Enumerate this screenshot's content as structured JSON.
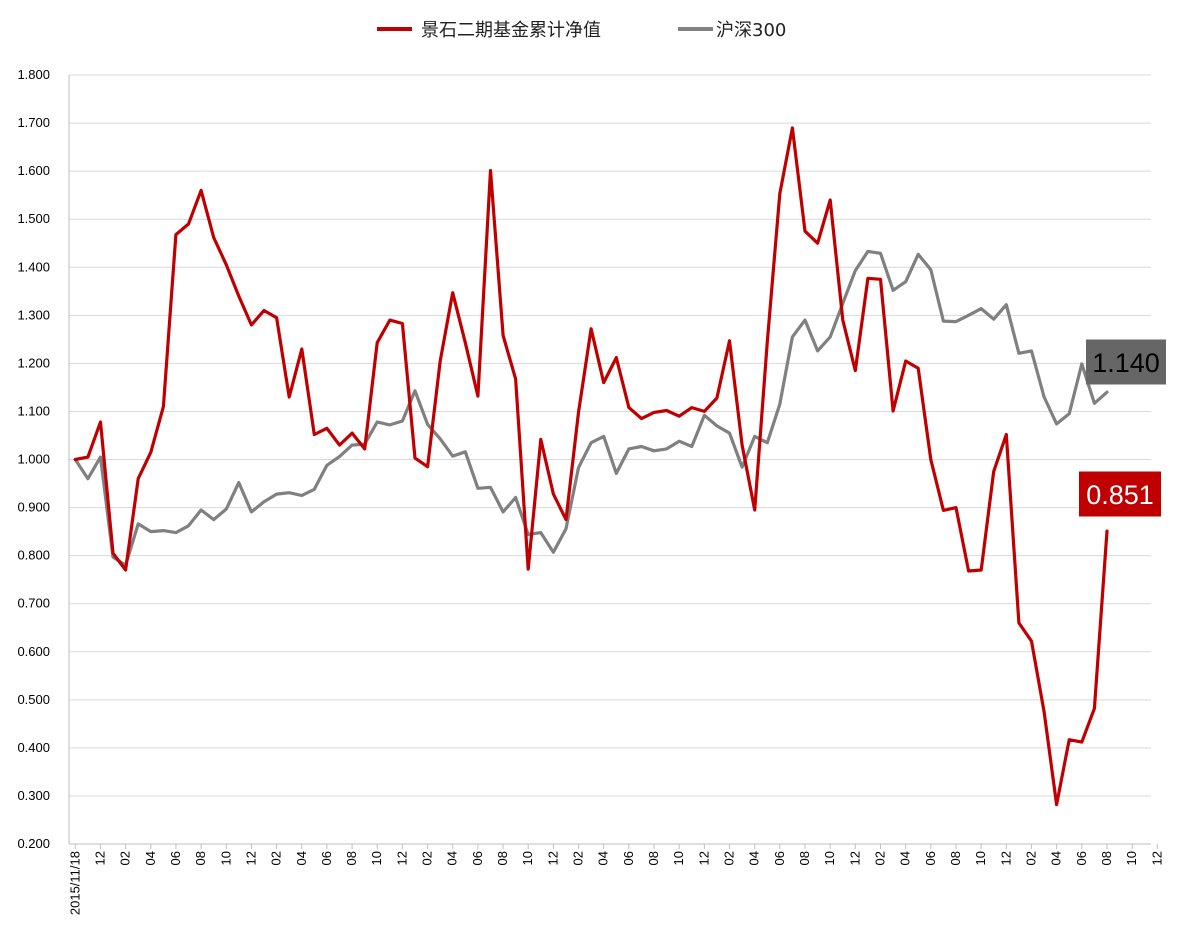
{
  "chart_data": {
    "type": "line",
    "title": "",
    "xlabel": "",
    "ylabel": "",
    "ylim": [
      0.2,
      1.8
    ],
    "y_ticks": [
      "0.200",
      "0.300",
      "0.400",
      "0.500",
      "0.600",
      "0.700",
      "0.800",
      "0.900",
      "1.000",
      "1.100",
      "1.200",
      "1.300",
      "1.400",
      "1.500",
      "1.600",
      "1.700",
      "1.800"
    ],
    "x_ticks": [
      "2015/11/18",
      "12",
      "02",
      "04",
      "06",
      "08",
      "10",
      "12",
      "02",
      "04",
      "06",
      "08",
      "10",
      "12",
      "02",
      "04",
      "06",
      "08",
      "10",
      "12",
      "02",
      "04",
      "06",
      "08",
      "10",
      "12",
      "02",
      "04",
      "06",
      "08",
      "10",
      "12",
      "02",
      "04",
      "06",
      "08",
      "10",
      "12",
      "02",
      "04",
      "06",
      "08",
      "10",
      "12"
    ],
    "grid": "horizontal",
    "legend_position": "top-center",
    "series": [
      {
        "name": "景石二期基金累计净值",
        "color": "#c00000",
        "values": [
          1.0,
          1.005,
          1.078,
          0.805,
          0.77,
          0.96,
          1.015,
          1.11,
          1.468,
          1.49,
          1.56,
          1.462,
          1.405,
          1.34,
          1.28,
          1.31,
          1.295,
          1.13,
          1.23,
          1.052,
          1.065,
          1.03,
          1.055,
          1.022,
          1.243,
          1.29,
          1.283,
          1.003,
          0.985,
          1.205,
          1.347,
          1.243,
          1.132,
          1.601,
          1.258,
          1.168,
          0.772,
          1.042,
          0.928,
          0.875,
          1.098,
          1.272,
          1.16,
          1.212,
          1.108,
          1.085,
          1.098,
          1.102,
          1.09,
          1.108,
          1.1,
          1.128,
          1.247,
          1.03,
          0.895,
          1.245,
          1.553,
          1.69,
          1.475,
          1.45,
          1.54,
          1.29,
          1.185,
          1.377,
          1.375,
          1.101,
          1.205,
          1.19,
          1.0,
          0.894,
          0.9,
          0.768,
          0.77,
          0.975,
          1.052,
          0.66,
          0.622,
          0.475,
          0.282,
          0.417,
          0.412,
          0.482,
          0.851
        ]
      },
      {
        "name": "沪深300",
        "color": "#808080",
        "values": [
          1.0,
          0.96,
          1.005,
          0.797,
          0.78,
          0.866,
          0.85,
          0.852,
          0.848,
          0.862,
          0.895,
          0.875,
          0.897,
          0.952,
          0.891,
          0.912,
          0.928,
          0.931,
          0.925,
          0.938,
          0.988,
          1.006,
          1.03,
          1.032,
          1.078,
          1.072,
          1.08,
          1.143,
          1.073,
          1.043,
          1.007,
          1.016,
          0.94,
          0.942,
          0.891,
          0.921,
          0.844,
          0.848,
          0.807,
          0.856,
          0.983,
          1.035,
          1.048,
          0.971,
          1.022,
          1.027,
          1.018,
          1.022,
          1.038,
          1.027,
          1.092,
          1.07,
          1.055,
          0.984,
          1.048,
          1.035,
          1.115,
          1.255,
          1.29,
          1.226,
          1.255,
          1.325,
          1.393,
          1.433,
          1.429,
          1.352,
          1.37,
          1.427,
          1.395,
          1.288,
          1.287,
          1.3,
          1.314,
          1.292,
          1.322,
          1.221,
          1.226,
          1.13,
          1.074,
          1.095,
          1.199,
          1.117,
          1.14
        ]
      }
    ],
    "callouts": [
      {
        "label": "1.140",
        "bg": "#666666",
        "fg": "#000000"
      },
      {
        "label": "0.851",
        "bg": "#c00000",
        "fg": "#ffffff"
      }
    ]
  }
}
